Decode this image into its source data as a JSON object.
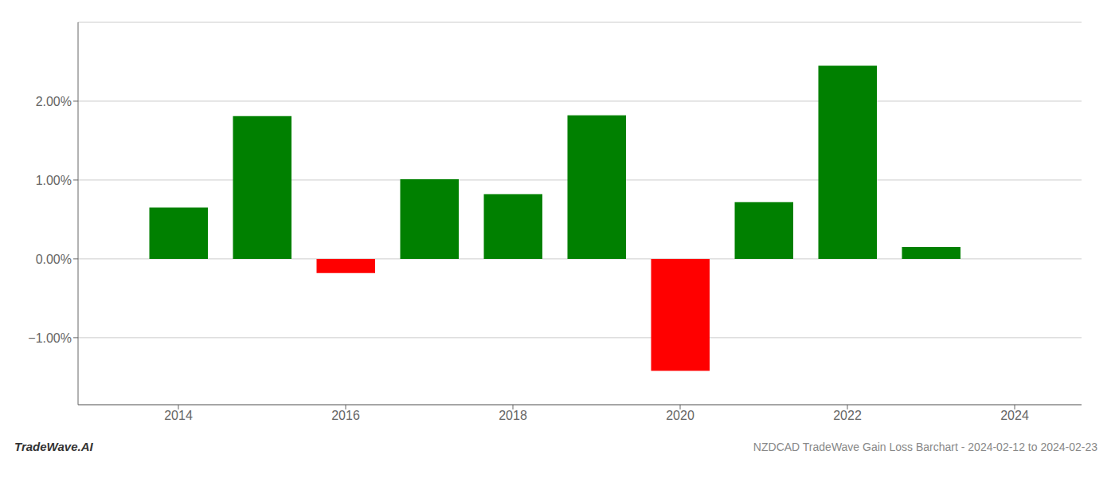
{
  "chart_data": {
    "type": "bar",
    "x": [
      2014,
      2015,
      2016,
      2017,
      2018,
      2019,
      2020,
      2021,
      2022,
      2023
    ],
    "values": [
      0.0065,
      0.0181,
      -0.0018,
      0.0101,
      0.0082,
      0.0182,
      -0.0142,
      0.0072,
      0.0245,
      0.0015
    ],
    "colors": [
      "#008000",
      "#008000",
      "#ff0000",
      "#008000",
      "#008000",
      "#008000",
      "#ff0000",
      "#008000",
      "#008000",
      "#008000"
    ],
    "xlim": [
      2012.8,
      2024.8
    ],
    "xticks": [
      2014,
      2016,
      2018,
      2020,
      2022,
      2024
    ],
    "ylim": [
      -0.0185,
      0.03
    ],
    "yticks": [
      {
        "value": -0.01,
        "label": "−1.00%"
      },
      {
        "value": 0.0,
        "label": "0.00%"
      },
      {
        "value": 0.01,
        "label": "1.00%"
      },
      {
        "value": 0.02,
        "label": "2.00%"
      }
    ],
    "grid": true,
    "annotations": [
      "TradeWave.AI",
      "NZDCAD TradeWave Gain Loss Barchart - 2024-02-12 to 2024-02-23"
    ]
  }
}
